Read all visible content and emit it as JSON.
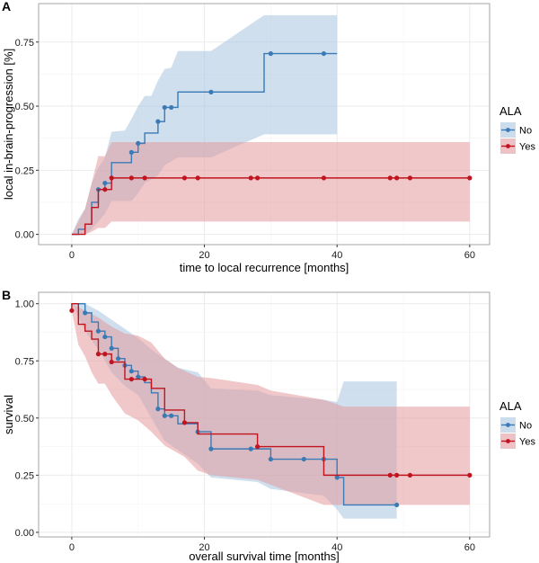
{
  "colors": {
    "no_line": "#3a7ab5",
    "no_band": "#a8c4e0",
    "yes_line": "#c0141e",
    "yes_band": "#e39a9e",
    "grid": "#ebebeb",
    "panel_border": "#a6a6a6"
  },
  "chart_data": [
    {
      "panel": "A",
      "type": "line",
      "subtype": "kaplan-meier step (cumulative incidence)",
      "title": "",
      "xlabel": "time to local recurrence [months]",
      "ylabel": "local in-brain-progression [%]",
      "xlim": [
        -5,
        63
      ],
      "ylim": [
        -0.04,
        0.9
      ],
      "xticks": [
        0,
        20,
        40,
        60
      ],
      "xtick_labels": [
        "0",
        "20",
        "40",
        "60"
      ],
      "yticks": [
        0,
        0.25,
        0.5,
        0.75
      ],
      "ytick_labels": [
        "0.00",
        "0.25",
        "0.50",
        "0.75"
      ],
      "grid": true,
      "legend": {
        "title": "ALA",
        "position": "right",
        "entries": [
          "No",
          "Yes"
        ]
      },
      "series": [
        {
          "name": "No",
          "steps": [
            [
              0,
              0
            ],
            [
              1,
              0.02
            ],
            [
              2,
              0.04
            ],
            [
              3,
              0.125
            ],
            [
              4,
              0.175
            ],
            [
              5,
              0.2
            ],
            [
              6,
              0.28
            ],
            [
              9,
              0.32
            ],
            [
              10,
              0.355
            ],
            [
              11,
              0.395
            ],
            [
              13,
              0.44
            ],
            [
              14,
              0.495
            ],
            [
              16,
              0.555
            ],
            [
              29,
              0.705
            ],
            [
              40,
              0.705
            ]
          ],
          "censored": [
            [
              4,
              0.175
            ],
            [
              5,
              0.2
            ],
            [
              9,
              0.32
            ],
            [
              10,
              0.355
            ],
            [
              13,
              0.44
            ],
            [
              14,
              0.495
            ],
            [
              15,
              0.495
            ],
            [
              21,
              0.555
            ],
            [
              30,
              0.705
            ],
            [
              38,
              0.705
            ]
          ],
          "band_upper": [
            [
              0,
              0
            ],
            [
              1,
              0.06
            ],
            [
              2,
              0.1
            ],
            [
              3,
              0.2
            ],
            [
              4,
              0.26
            ],
            [
              5,
              0.3
            ],
            [
              6,
              0.4
            ],
            [
              8,
              0.405
            ],
            [
              9,
              0.45
            ],
            [
              10,
              0.5
            ],
            [
              11,
              0.54
            ],
            [
              12,
              0.54
            ],
            [
              13,
              0.6
            ],
            [
              14,
              0.645
            ],
            [
              15,
              0.65
            ],
            [
              16,
              0.715
            ],
            [
              21,
              0.715
            ],
            [
              29,
              0.855
            ],
            [
              40,
              0.855
            ]
          ],
          "band_lower": [
            [
              0,
              0
            ],
            [
              1,
              0
            ],
            [
              2,
              0
            ],
            [
              3,
              0.02
            ],
            [
              4,
              0.05
            ],
            [
              5,
              0.08
            ],
            [
              6,
              0.13
            ],
            [
              9,
              0.13
            ],
            [
              10,
              0.16
            ],
            [
              11,
              0.2
            ],
            [
              13,
              0.23
            ],
            [
              14,
              0.27
            ],
            [
              16,
              0.3
            ],
            [
              21,
              0.3
            ],
            [
              29,
              0.39
            ],
            [
              40,
              0.39
            ]
          ]
        },
        {
          "name": "Yes",
          "steps": [
            [
              0,
              0
            ],
            [
              2,
              0.04
            ],
            [
              3,
              0.105
            ],
            [
              4,
              0.175
            ],
            [
              6,
              0.22
            ],
            [
              60,
              0.22
            ]
          ],
          "censored": [
            [
              5,
              0.175
            ],
            [
              6,
              0.22
            ],
            [
              9,
              0.22
            ],
            [
              11,
              0.22
            ],
            [
              17,
              0.22
            ],
            [
              19,
              0.22
            ],
            [
              27,
              0.22
            ],
            [
              28,
              0.22
            ],
            [
              38,
              0.22
            ],
            [
              48,
              0.22
            ],
            [
              49,
              0.22
            ],
            [
              51,
              0.22
            ],
            [
              60,
              0.22
            ]
          ],
          "band_upper": [
            [
              0,
              0
            ],
            [
              2,
              0.1
            ],
            [
              3,
              0.2
            ],
            [
              4,
              0.305
            ],
            [
              5,
              0.305
            ],
            [
              6,
              0.36
            ],
            [
              60,
              0.36
            ]
          ],
          "band_lower": [
            [
              0,
              0
            ],
            [
              2,
              0
            ],
            [
              3,
              0.01
            ],
            [
              4,
              0.025
            ],
            [
              5,
              0.025
            ],
            [
              6,
              0.05
            ],
            [
              60,
              0.05
            ]
          ]
        }
      ]
    },
    {
      "panel": "B",
      "type": "line",
      "subtype": "kaplan-meier step (survival)",
      "title": "",
      "xlabel": "overall survival time [months]",
      "ylabel": "survival",
      "xlim": [
        -5,
        63
      ],
      "ylim": [
        -0.02,
        1.05
      ],
      "xticks": [
        0,
        20,
        40,
        60
      ],
      "xtick_labels": [
        "0",
        "20",
        "40",
        "60"
      ],
      "yticks": [
        0,
        0.25,
        0.5,
        0.75,
        1.0
      ],
      "ytick_labels": [
        "0.00",
        "0.25",
        "0.50",
        "0.75",
        "1.00"
      ],
      "grid": true,
      "legend": {
        "title": "ALA",
        "position": "right",
        "entries": [
          "No",
          "Yes"
        ]
      },
      "series": [
        {
          "name": "No",
          "steps": [
            [
              0,
              1.0
            ],
            [
              2,
              0.96
            ],
            [
              3,
              0.92
            ],
            [
              4,
              0.88
            ],
            [
              5,
              0.855
            ],
            [
              6,
              0.805
            ],
            [
              7,
              0.76
            ],
            [
              8,
              0.73
            ],
            [
              9,
              0.705
            ],
            [
              10,
              0.68
            ],
            [
              11,
              0.655
            ],
            [
              12,
              0.61
            ],
            [
              13,
              0.54
            ],
            [
              14,
              0.51
            ],
            [
              16,
              0.475
            ],
            [
              19,
              0.44
            ],
            [
              21,
              0.365
            ],
            [
              28,
              0.365
            ],
            [
              30,
              0.32
            ],
            [
              38,
              0.32
            ],
            [
              40,
              0.24
            ],
            [
              41,
              0.12
            ],
            [
              49,
              0.12
            ]
          ],
          "censored": [
            [
              2,
              0.96
            ],
            [
              4,
              0.88
            ],
            [
              5,
              0.855
            ],
            [
              6,
              0.805
            ],
            [
              7,
              0.76
            ],
            [
              8,
              0.73
            ],
            [
              9,
              0.705
            ],
            [
              10,
              0.68
            ],
            [
              13,
              0.54
            ],
            [
              14,
              0.51
            ],
            [
              15,
              0.51
            ],
            [
              19,
              0.44
            ],
            [
              21,
              0.365
            ],
            [
              27,
              0.365
            ],
            [
              30,
              0.32
            ],
            [
              35,
              0.32
            ],
            [
              38,
              0.32
            ],
            [
              40,
              0.24
            ],
            [
              49,
              0.12
            ]
          ],
          "band_upper": [
            [
              0,
              1.0
            ],
            [
              2,
              1.0
            ],
            [
              4,
              0.97
            ],
            [
              6,
              0.93
            ],
            [
              8,
              0.89
            ],
            [
              10,
              0.85
            ],
            [
              12,
              0.8
            ],
            [
              14,
              0.76
            ],
            [
              16,
              0.72
            ],
            [
              19,
              0.7
            ],
            [
              21,
              0.63
            ],
            [
              28,
              0.62
            ],
            [
              30,
              0.6
            ],
            [
              38,
              0.58
            ],
            [
              40,
              0.57
            ],
            [
              41,
              0.66
            ],
            [
              49,
              0.66
            ]
          ],
          "band_lower": [
            [
              0,
              1.0
            ],
            [
              2,
              0.88
            ],
            [
              4,
              0.8
            ],
            [
              6,
              0.7
            ],
            [
              8,
              0.64
            ],
            [
              10,
              0.6
            ],
            [
              12,
              0.5
            ],
            [
              13,
              0.45
            ],
            [
              14,
              0.4
            ],
            [
              16,
              0.36
            ],
            [
              19,
              0.3
            ],
            [
              21,
              0.24
            ],
            [
              28,
              0.22
            ],
            [
              30,
              0.19
            ],
            [
              38,
              0.16
            ],
            [
              40,
              0.1
            ],
            [
              41,
              0.06
            ],
            [
              49,
              0.06
            ]
          ]
        },
        {
          "name": "Yes",
          "steps": [
            [
              0,
              0.97
            ],
            [
              0,
              1.0
            ],
            [
              1,
              0.91
            ],
            [
              2,
              0.88
            ],
            [
              3,
              0.845
            ],
            [
              4,
              0.78
            ],
            [
              6,
              0.745
            ],
            [
              8,
              0.67
            ],
            [
              11,
              0.67
            ],
            [
              12,
              0.63
            ],
            [
              14,
              0.535
            ],
            [
              17,
              0.48
            ],
            [
              19,
              0.43
            ],
            [
              27,
              0.43
            ],
            [
              28,
              0.375
            ],
            [
              38,
              0.375
            ],
            [
              38,
              0.25
            ],
            [
              60,
              0.25
            ]
          ],
          "censored": [
            [
              0,
              0.97
            ],
            [
              4,
              0.78
            ],
            [
              5,
              0.78
            ],
            [
              6,
              0.745
            ],
            [
              9,
              0.67
            ],
            [
              11,
              0.67
            ],
            [
              17,
              0.48
            ],
            [
              28,
              0.375
            ],
            [
              48,
              0.25
            ],
            [
              49,
              0.25
            ],
            [
              51,
              0.25
            ],
            [
              60,
              0.25
            ]
          ],
          "band_upper": [
            [
              0,
              1.0
            ],
            [
              2,
              0.97
            ],
            [
              4,
              0.94
            ],
            [
              6,
              0.9
            ],
            [
              8,
              0.87
            ],
            [
              10,
              0.86
            ],
            [
              12,
              0.83
            ],
            [
              14,
              0.76
            ],
            [
              16,
              0.72
            ],
            [
              19,
              0.68
            ],
            [
              21,
              0.675
            ],
            [
              28,
              0.645
            ],
            [
              30,
              0.62
            ],
            [
              38,
              0.58
            ],
            [
              40,
              0.56
            ],
            [
              41,
              0.55
            ],
            [
              60,
              0.55
            ]
          ],
          "band_lower": [
            [
              0,
              0.97
            ],
            [
              1,
              0.82
            ],
            [
              2,
              0.77
            ],
            [
              3,
              0.7
            ],
            [
              4,
              0.65
            ],
            [
              5,
              0.65
            ],
            [
              6,
              0.6
            ],
            [
              8,
              0.52
            ],
            [
              10,
              0.49
            ],
            [
              12,
              0.44
            ],
            [
              14,
              0.38
            ],
            [
              17,
              0.33
            ],
            [
              19,
              0.27
            ],
            [
              21,
              0.25
            ],
            [
              28,
              0.23
            ],
            [
              38,
              0.12
            ],
            [
              60,
              0.12
            ]
          ]
        }
      ]
    }
  ]
}
